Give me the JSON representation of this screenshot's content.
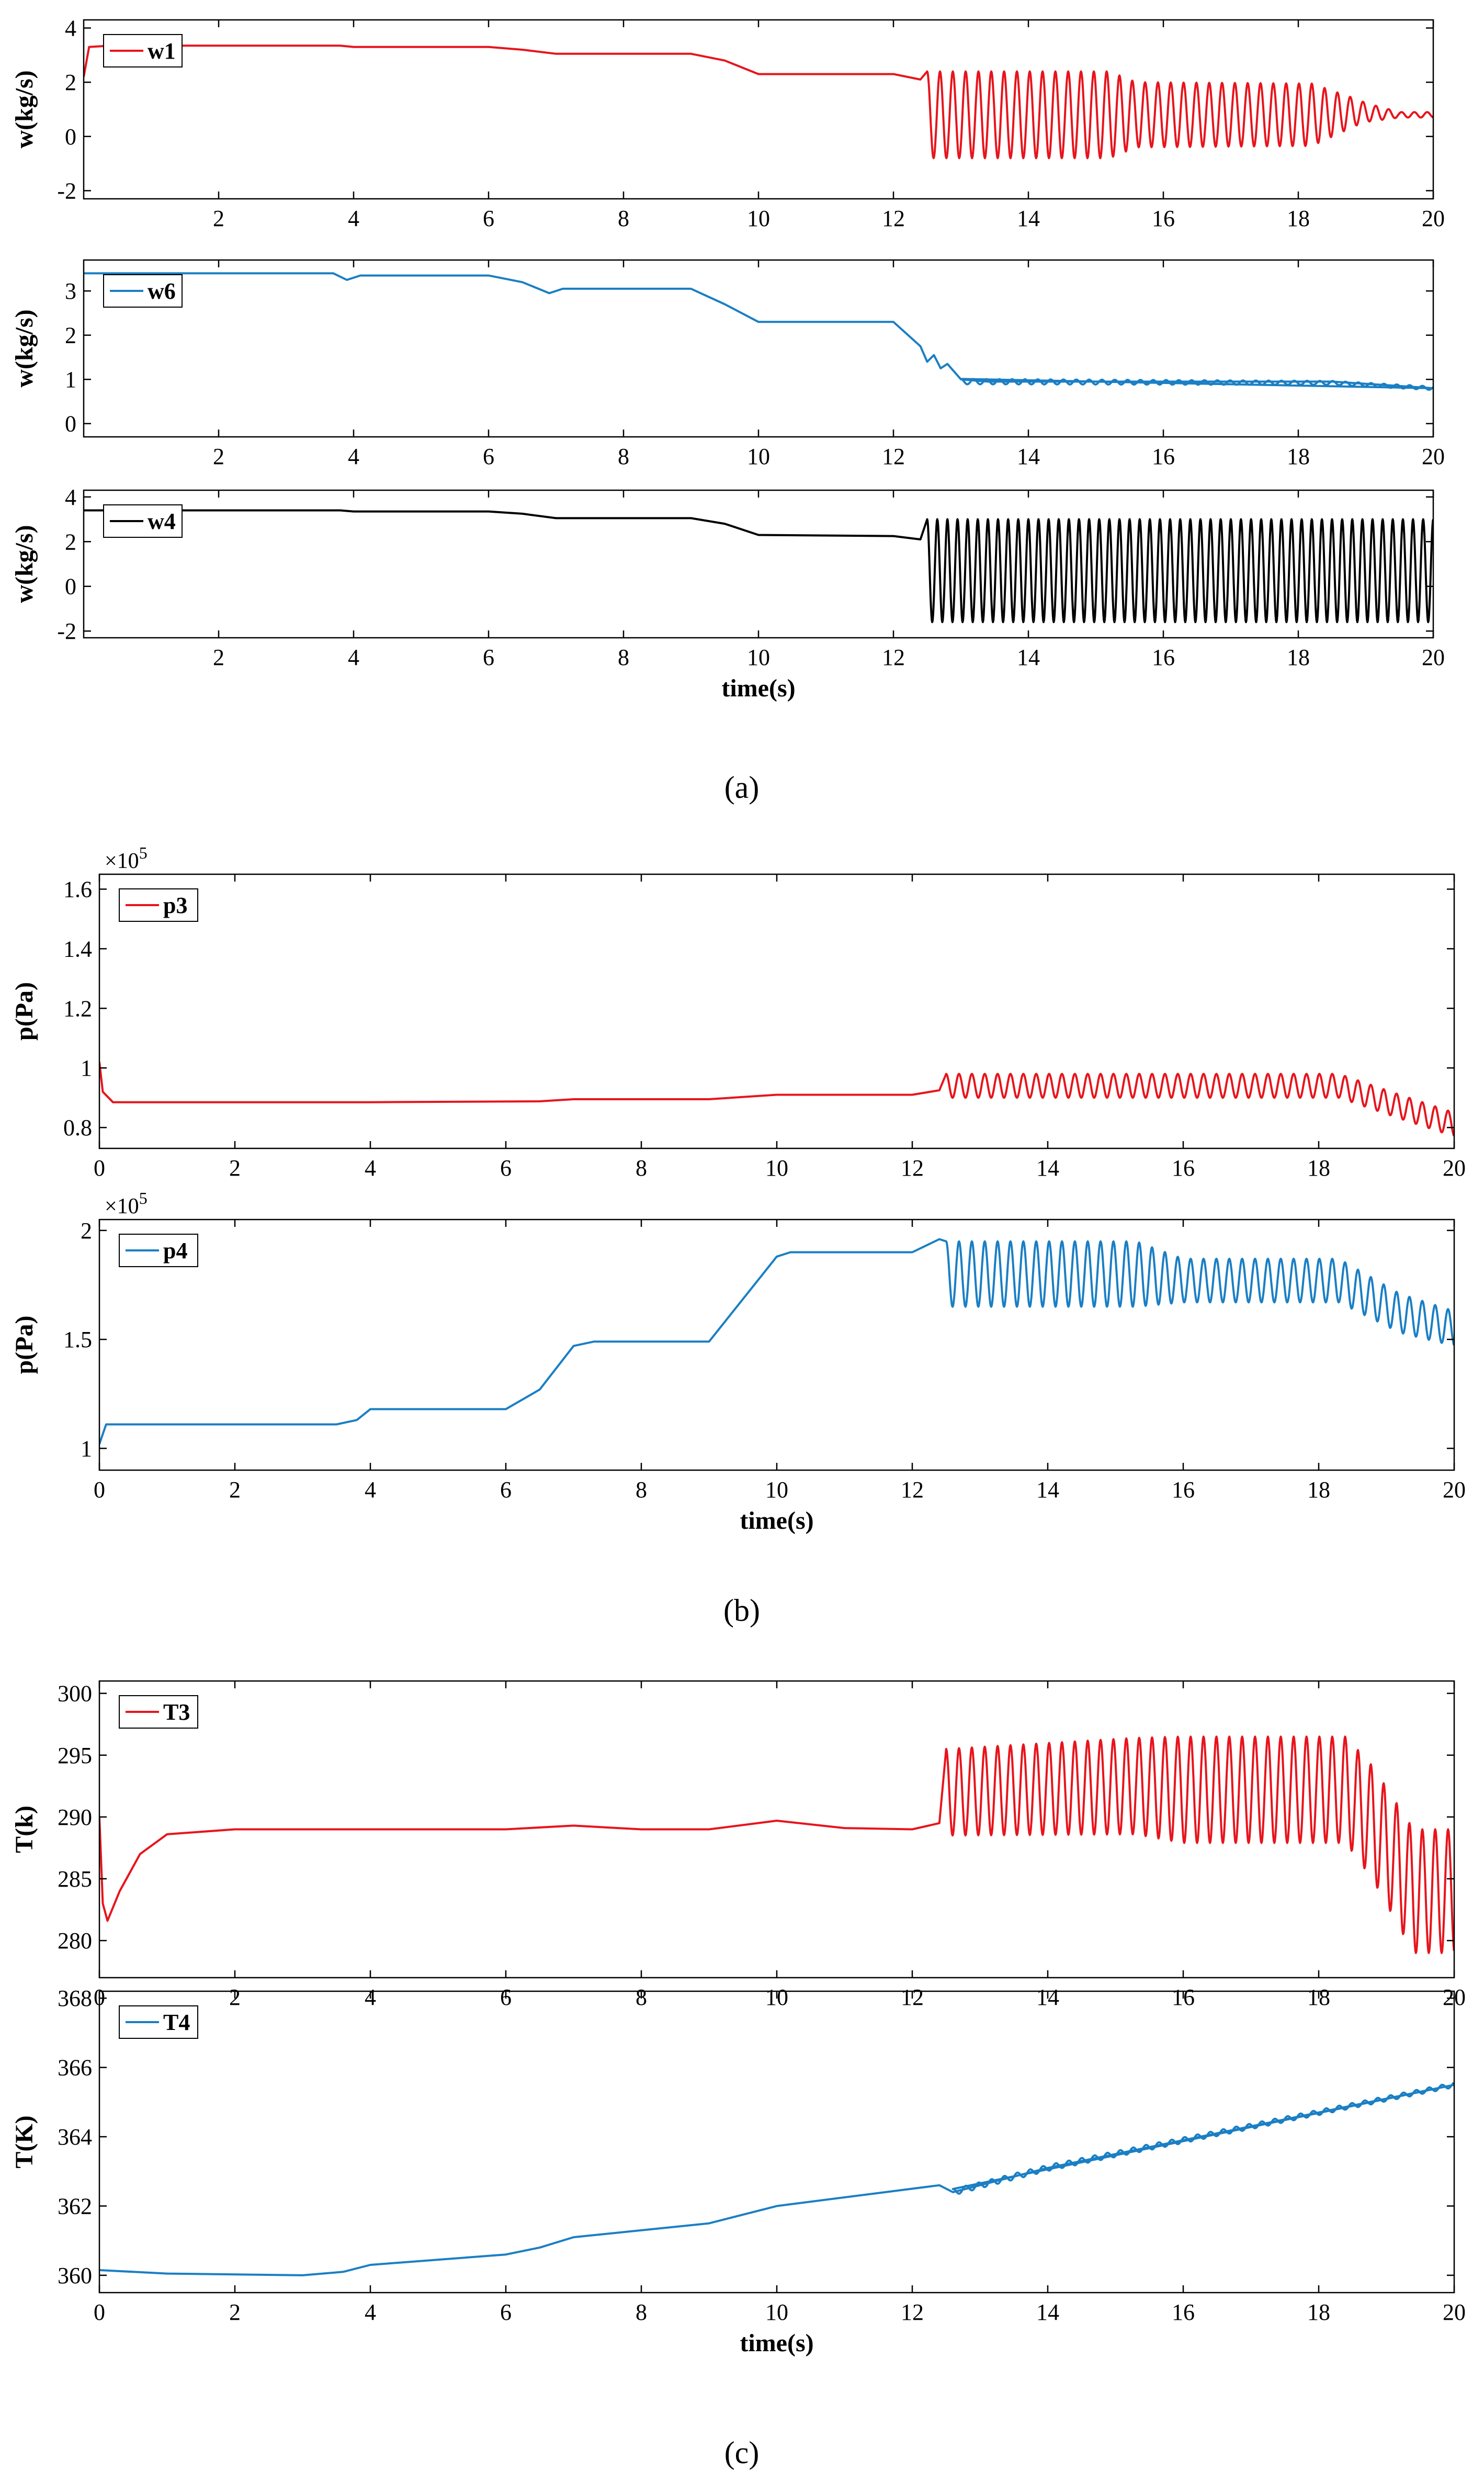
{
  "colors": {
    "red": "#e8141c",
    "blue": "#1a7fc4",
    "black": "#000000"
  },
  "chart_data": [
    {
      "type": "line",
      "panel": "a1",
      "caption": "",
      "xlabel": "",
      "ylabel": "w(kg/s)",
      "xlim": [
        0,
        20
      ],
      "ylim": [
        -2.3,
        4.3
      ],
      "xticks": [
        2,
        4,
        6,
        8,
        10,
        12,
        14,
        16,
        18,
        20
      ],
      "yticks": [
        -2,
        0,
        2,
        4
      ],
      "series": [
        {
          "name": "w1",
          "color": "#e8141c",
          "points": [
            [
              0,
              2.2
            ],
            [
              0.08,
              3.3
            ],
            [
              0.4,
              3.35
            ],
            [
              3.8,
              3.35
            ],
            [
              4,
              3.3
            ],
            [
              6,
              3.3
            ],
            [
              6.5,
              3.2
            ],
            [
              7,
              3.05
            ],
            [
              9,
              3.05
            ],
            [
              9.5,
              2.8
            ],
            [
              10,
              2.3
            ],
            [
              12,
              2.3
            ],
            [
              12.4,
              2.1
            ]
          ],
          "oscillation": {
            "start": 12.5,
            "end": 20,
            "period": 0.19,
            "center": [
              [
                12.5,
                0.8
              ],
              [
                18.2,
                0.8
              ],
              [
                18.9,
                0.9
              ],
              [
                19.5,
                0.8
              ],
              [
                20,
                0.8
              ]
            ],
            "amplitude": [
              [
                12.5,
                1.6
              ],
              [
                15.2,
                1.6
              ],
              [
                15.6,
                1.2
              ],
              [
                18.2,
                1.15
              ],
              [
                19.0,
                0.35
              ],
              [
                19.5,
                0.1
              ],
              [
                20,
                0.1
              ]
            ]
          }
        }
      ],
      "legend": {
        "label": "w1",
        "position": "top-left"
      }
    },
    {
      "type": "line",
      "panel": "a2",
      "caption": "",
      "xlabel": "",
      "ylabel": "w(kg/s)",
      "xlim": [
        0,
        20
      ],
      "ylim": [
        -0.3,
        3.7
      ],
      "xticks": [
        2,
        4,
        6,
        8,
        10,
        12,
        14,
        16,
        18,
        20
      ],
      "yticks": [
        0,
        1,
        2,
        3
      ],
      "series": [
        {
          "name": "w6",
          "color": "#1a7fc4",
          "points": [
            [
              0,
              3.4
            ],
            [
              3.7,
              3.4
            ],
            [
              3.9,
              3.25
            ],
            [
              4.1,
              3.35
            ],
            [
              6,
              3.35
            ],
            [
              6.5,
              3.2
            ],
            [
              6.9,
              2.95
            ],
            [
              7.1,
              3.05
            ],
            [
              9,
              3.05
            ],
            [
              9.5,
              2.7
            ],
            [
              10,
              2.3
            ],
            [
              12,
              2.3
            ],
            [
              12.4,
              1.75
            ],
            [
              12.5,
              1.4
            ],
            [
              12.6,
              1.55
            ],
            [
              12.7,
              1.25
            ],
            [
              12.8,
              1.35
            ],
            [
              13,
              1.0
            ],
            [
              13.4,
              0.95
            ],
            [
              18.5,
              0.95
            ],
            [
              20,
              0.8
            ]
          ],
          "oscillation": {
            "start": 13.0,
            "end": 20,
            "period": 0.19,
            "center": [
              [
                13,
                0.95
              ],
              [
                18.5,
                0.92
              ],
              [
                20,
                0.8
              ]
            ],
            "amplitude": [
              [
                13,
                0.06
              ],
              [
                20,
                0.04
              ]
            ]
          }
        }
      ],
      "legend": {
        "label": "w6",
        "position": "top-left"
      }
    },
    {
      "type": "line",
      "panel": "a3",
      "caption": "(a)",
      "xlabel": "time(s)",
      "ylabel": "w(kg/s)",
      "xlim": [
        0,
        20
      ],
      "ylim": [
        -2.3,
        4.3
      ],
      "xticks": [
        2,
        4,
        6,
        8,
        10,
        12,
        14,
        16,
        18,
        20
      ],
      "yticks": [
        -2,
        0,
        2,
        4
      ],
      "series": [
        {
          "name": "w4",
          "color": "#000000",
          "points": [
            [
              0,
              3.4
            ],
            [
              3.8,
              3.4
            ],
            [
              4,
              3.35
            ],
            [
              6,
              3.35
            ],
            [
              6.5,
              3.25
            ],
            [
              7,
              3.05
            ],
            [
              9,
              3.05
            ],
            [
              9.5,
              2.8
            ],
            [
              10,
              2.3
            ],
            [
              12,
              2.25
            ],
            [
              12.4,
              2.1
            ]
          ],
          "oscillation": {
            "start": 12.5,
            "end": 20,
            "period": 0.15,
            "center": [
              [
                12.5,
                0.7
              ],
              [
                20,
                0.7
              ]
            ],
            "amplitude": [
              [
                12.5,
                2.3
              ],
              [
                20,
                2.3
              ]
            ]
          }
        }
      ],
      "legend": {
        "label": "w4",
        "position": "top-left"
      }
    },
    {
      "type": "line",
      "panel": "b1",
      "caption": "",
      "xlabel": "",
      "ylabel": "p(Pa)",
      "exponent": "5",
      "xlim": [
        0,
        20
      ],
      "ylim": [
        0.73,
        1.65
      ],
      "xticks": [
        0,
        2,
        4,
        6,
        8,
        10,
        12,
        14,
        16,
        18,
        20
      ],
      "yticks": [
        0.8,
        1,
        1.2,
        1.4,
        1.6
      ],
      "series": [
        {
          "name": "p3",
          "color": "#e8141c",
          "points": [
            [
              0,
              1.02
            ],
            [
              0.05,
              0.92
            ],
            [
              0.2,
              0.885
            ],
            [
              4,
              0.885
            ],
            [
              6.5,
              0.888
            ],
            [
              7,
              0.895
            ],
            [
              9,
              0.895
            ],
            [
              10,
              0.91
            ],
            [
              12,
              0.91
            ],
            [
              12.4,
              0.925
            ]
          ],
          "oscillation": {
            "start": 12.5,
            "end": 20,
            "period": 0.19,
            "center": [
              [
                12.5,
                0.94
              ],
              [
                18.3,
                0.94
              ],
              [
                19.2,
                0.87
              ],
              [
                20,
                0.81
              ]
            ],
            "amplitude": [
              [
                12.5,
                0.04
              ],
              [
                18.3,
                0.04
              ],
              [
                20,
                0.04
              ]
            ]
          }
        }
      ],
      "legend": {
        "label": "p3",
        "position": "top-left"
      }
    },
    {
      "type": "line",
      "panel": "b2",
      "caption": "(b)",
      "xlabel": "time(s)",
      "ylabel": "p(Pa)",
      "exponent": "5",
      "xlim": [
        0,
        20
      ],
      "ylim": [
        0.9,
        2.05
      ],
      "xticks": [
        0,
        2,
        4,
        6,
        8,
        10,
        12,
        14,
        16,
        18,
        20
      ],
      "yticks": [
        1,
        1.5,
        2
      ],
      "series": [
        {
          "name": "p4",
          "color": "#1a7fc4",
          "points": [
            [
              0,
              1.02
            ],
            [
              0.1,
              1.11
            ],
            [
              3.5,
              1.11
            ],
            [
              3.8,
              1.13
            ],
            [
              4,
              1.18
            ],
            [
              6,
              1.18
            ],
            [
              6.5,
              1.27
            ],
            [
              7,
              1.47
            ],
            [
              7.3,
              1.49
            ],
            [
              9,
              1.49
            ],
            [
              10,
              1.88
            ],
            [
              10.2,
              1.9
            ],
            [
              12,
              1.9
            ],
            [
              12.4,
              1.96
            ]
          ],
          "oscillation": {
            "start": 12.5,
            "end": 20,
            "period": 0.19,
            "center": [
              [
                12.5,
                1.8
              ],
              [
                15.3,
                1.8
              ],
              [
                16,
                1.77
              ],
              [
                18.3,
                1.77
              ],
              [
                19.2,
                1.62
              ],
              [
                20,
                1.55
              ]
            ],
            "amplitude": [
              [
                12.5,
                0.15
              ],
              [
                15.3,
                0.15
              ],
              [
                16,
                0.1
              ],
              [
                18.3,
                0.1
              ],
              [
                20,
                0.08
              ]
            ]
          }
        }
      ],
      "legend": {
        "label": "p4",
        "position": "top-left"
      }
    },
    {
      "type": "line",
      "panel": "c1",
      "caption": "",
      "xlabel": "",
      "ylabel": "T(k)",
      "xlim": [
        0,
        20
      ],
      "ylim": [
        277,
        301
      ],
      "xticks": [
        0,
        2,
        4,
        6,
        8,
        10,
        12,
        14,
        16,
        18,
        20
      ],
      "yticks": [
        280,
        285,
        290,
        295,
        300
      ],
      "series": [
        {
          "name": "T3",
          "color": "#e8141c",
          "points": [
            [
              0,
              290
            ],
            [
              0.05,
              283
            ],
            [
              0.12,
              281.6
            ],
            [
              0.3,
              284
            ],
            [
              0.6,
              287
            ],
            [
              1,
              288.6
            ],
            [
              2,
              289
            ],
            [
              4,
              289
            ],
            [
              6,
              289
            ],
            [
              7,
              289.3
            ],
            [
              8,
              289
            ],
            [
              9,
              289
            ],
            [
              10,
              289.7
            ],
            [
              11,
              289.1
            ],
            [
              12,
              289
            ],
            [
              12.4,
              289.5
            ]
          ],
          "oscillation": {
            "start": 12.5,
            "end": 20,
            "period": 0.19,
            "center": [
              [
                12.5,
                292
              ],
              [
                15.3,
                292.5
              ],
              [
                16,
                292.2
              ],
              [
                18.4,
                292.2
              ],
              [
                18.8,
                289.5
              ],
              [
                19.4,
                284
              ],
              [
                20,
                284
              ]
            ],
            "amplitude": [
              [
                12.5,
                3.5
              ],
              [
                15.3,
                3.9
              ],
              [
                16,
                4.3
              ],
              [
                18.4,
                4.3
              ],
              [
                19.4,
                5.0
              ],
              [
                20,
                5.0
              ]
            ]
          }
        }
      ],
      "legend": {
        "label": "T3",
        "position": "top-left"
      }
    },
    {
      "type": "line",
      "panel": "c2",
      "caption": "(c)",
      "xlabel": "time(s)",
      "ylabel": "T(K)",
      "xlim": [
        0,
        20
      ],
      "ylim": [
        359.5,
        368.2
      ],
      "xticks": [
        0,
        2,
        4,
        6,
        8,
        10,
        12,
        14,
        16,
        18,
        20
      ],
      "yticks": [
        360,
        362,
        364,
        366,
        368
      ],
      "series": [
        {
          "name": "T4",
          "color": "#1a7fc4",
          "points": [
            [
              0,
              360.15
            ],
            [
              1,
              360.05
            ],
            [
              3,
              360.0
            ],
            [
              3.6,
              360.1
            ],
            [
              4,
              360.3
            ],
            [
              6,
              360.6
            ],
            [
              6.5,
              360.8
            ],
            [
              7,
              361.1
            ],
            [
              9,
              361.5
            ],
            [
              10,
              362.0
            ],
            [
              12.4,
              362.6
            ],
            [
              12.6,
              362.4
            ],
            [
              14,
              363.1
            ],
            [
              16,
              363.9
            ],
            [
              18,
              364.7
            ],
            [
              20,
              365.5
            ]
          ],
          "oscillation": {
            "start": 12.6,
            "end": 20,
            "period": 0.19,
            "center": [
              [
                12.6,
                362.4
              ],
              [
                14,
                363.1
              ],
              [
                16,
                363.9
              ],
              [
                18,
                364.7
              ],
              [
                20,
                365.5
              ]
            ],
            "amplitude": [
              [
                12.6,
                0.09
              ],
              [
                20,
                0.07
              ]
            ]
          }
        }
      ],
      "legend": {
        "label": "T4",
        "position": "top-left"
      }
    }
  ]
}
